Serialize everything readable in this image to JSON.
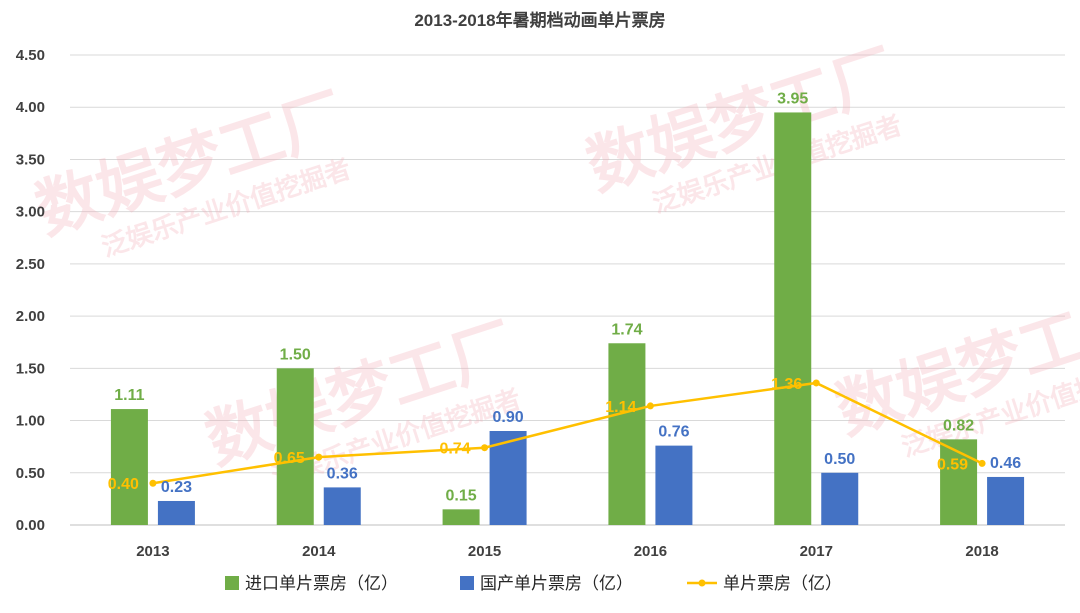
{
  "chart_data": {
    "type": "bar",
    "title": "2013-2018年暑期档动画单片票房",
    "categories": [
      "2013",
      "2014",
      "2015",
      "2016",
      "2017",
      "2018"
    ],
    "ylim": [
      0,
      4.5
    ],
    "yticks": [
      "0.00",
      "0.50",
      "1.00",
      "1.50",
      "2.00",
      "2.50",
      "3.00",
      "3.50",
      "4.00",
      "4.50"
    ],
    "grid": true,
    "legend_position": "bottom",
    "series": [
      {
        "name": "进口单片票房（亿）",
        "kind": "bar",
        "color": "#70ad47",
        "label_color": "#70ad47",
        "values": [
          1.11,
          1.5,
          0.15,
          1.74,
          3.95,
          0.82
        ],
        "labels": [
          "1.11",
          "1.50",
          "0.15",
          "1.74",
          "3.95",
          "0.82"
        ]
      },
      {
        "name": "国产单片票房（亿）",
        "kind": "bar",
        "color": "#4472c4",
        "label_color": "#4472c4",
        "values": [
          0.23,
          0.36,
          0.9,
          0.76,
          0.5,
          0.46
        ],
        "labels": [
          "0.23",
          "0.36",
          "0.90",
          "0.76",
          "0.50",
          "0.46"
        ]
      },
      {
        "name": "单片票房（亿）",
        "kind": "line",
        "color": "#ffc000",
        "label_color": "#ffc000",
        "values": [
          0.4,
          0.65,
          0.74,
          1.14,
          1.36,
          0.59
        ],
        "labels": [
          "0.40",
          "0.65",
          "0.74",
          "1.14",
          "1.36",
          "0.59"
        ]
      }
    ]
  }
}
